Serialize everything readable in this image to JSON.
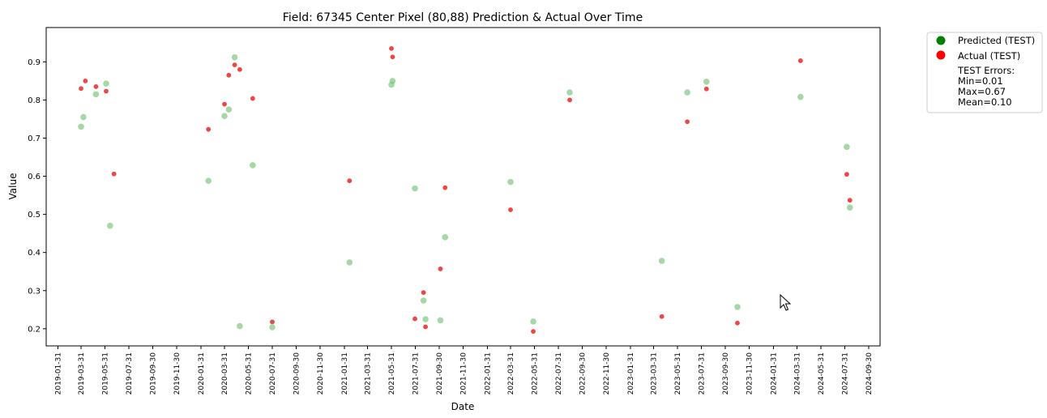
{
  "chart_data": {
    "type": "scatter",
    "title": "Field: 67345 Center Pixel (80,88) Prediction & Actual Over Time",
    "xlabel": "Date",
    "ylabel": "Value",
    "xlim": [
      "2019-01-01",
      "2024-10-29"
    ],
    "ylim": [
      0.155,
      0.99
    ],
    "yticks": [
      0.2,
      0.3,
      0.4,
      0.5,
      0.6,
      0.7,
      0.8,
      0.9
    ],
    "xticks": [
      "2019-01-31",
      "2019-03-31",
      "2019-05-31",
      "2019-07-31",
      "2019-09-30",
      "2019-11-30",
      "2020-01-31",
      "2020-03-31",
      "2020-05-31",
      "2020-07-31",
      "2020-09-30",
      "2020-11-30",
      "2021-01-31",
      "2021-03-31",
      "2021-05-31",
      "2021-07-31",
      "2021-09-30",
      "2021-11-30",
      "2022-01-31",
      "2022-03-31",
      "2022-05-31",
      "2022-07-31",
      "2022-09-30",
      "2022-11-30",
      "2023-01-31",
      "2023-03-31",
      "2023-05-31",
      "2023-07-31",
      "2023-09-30",
      "2023-11-30",
      "2024-01-31",
      "2024-03-31",
      "2024-05-31",
      "2024-07-31",
      "2024-09-30"
    ],
    "legend_position": "outside-top-right",
    "grid": false,
    "series": [
      {
        "name": "Predicted (TEST)",
        "marker_color": "#77c177",
        "legend_color": "#008000",
        "points": [
          {
            "x": "2019-03-31",
            "y": 0.73
          },
          {
            "x": "2019-04-06",
            "y": 0.755
          },
          {
            "x": "2019-05-08",
            "y": 0.815
          },
          {
            "x": "2019-06-03",
            "y": 0.843
          },
          {
            "x": "2019-06-13",
            "y": 0.47
          },
          {
            "x": "2020-02-19",
            "y": 0.588
          },
          {
            "x": "2020-03-31",
            "y": 0.758
          },
          {
            "x": "2020-04-11",
            "y": 0.775
          },
          {
            "x": "2020-04-26",
            "y": 0.912
          },
          {
            "x": "2020-05-09",
            "y": 0.207
          },
          {
            "x": "2020-06-11",
            "y": 0.629
          },
          {
            "x": "2020-07-31",
            "y": 0.204
          },
          {
            "x": "2021-02-13",
            "y": 0.374
          },
          {
            "x": "2021-05-31",
            "y": 0.84
          },
          {
            "x": "2021-06-03",
            "y": 0.85
          },
          {
            "x": "2021-07-30",
            "y": 0.568
          },
          {
            "x": "2021-08-21",
            "y": 0.274
          },
          {
            "x": "2021-08-26",
            "y": 0.225
          },
          {
            "x": "2021-10-03",
            "y": 0.222
          },
          {
            "x": "2021-10-15",
            "y": 0.44
          },
          {
            "x": "2022-03-31",
            "y": 0.585
          },
          {
            "x": "2022-05-28",
            "y": 0.219
          },
          {
            "x": "2022-08-29",
            "y": 0.82
          },
          {
            "x": "2023-04-21",
            "y": 0.378
          },
          {
            "x": "2023-06-25",
            "y": 0.82
          },
          {
            "x": "2023-08-13",
            "y": 0.848
          },
          {
            "x": "2023-10-31",
            "y": 0.257
          },
          {
            "x": "2024-04-09",
            "y": 0.808
          },
          {
            "x": "2024-08-05",
            "y": 0.677
          },
          {
            "x": "2024-08-13",
            "y": 0.518
          }
        ]
      },
      {
        "name": "Actual (TEST)",
        "marker_color": "#f03030",
        "legend_color": "#ff0000",
        "points": [
          {
            "x": "2019-03-31",
            "y": 0.83
          },
          {
            "x": "2019-04-11",
            "y": 0.85
          },
          {
            "x": "2019-05-08",
            "y": 0.835
          },
          {
            "x": "2019-06-03",
            "y": 0.823
          },
          {
            "x": "2019-06-23",
            "y": 0.606
          },
          {
            "x": "2020-02-19",
            "y": 0.723
          },
          {
            "x": "2020-03-31",
            "y": 0.789
          },
          {
            "x": "2020-04-11",
            "y": 0.865
          },
          {
            "x": "2020-04-26",
            "y": 0.892
          },
          {
            "x": "2020-05-09",
            "y": 0.88
          },
          {
            "x": "2020-06-11",
            "y": 0.804
          },
          {
            "x": "2020-07-31",
            "y": 0.218
          },
          {
            "x": "2021-02-13",
            "y": 0.588
          },
          {
            "x": "2021-05-31",
            "y": 0.935
          },
          {
            "x": "2021-06-03",
            "y": 0.913
          },
          {
            "x": "2021-07-30",
            "y": 0.226
          },
          {
            "x": "2021-08-21",
            "y": 0.295
          },
          {
            "x": "2021-08-26",
            "y": 0.205
          },
          {
            "x": "2021-10-03",
            "y": 0.357
          },
          {
            "x": "2021-10-15",
            "y": 0.57
          },
          {
            "x": "2022-03-31",
            "y": 0.512
          },
          {
            "x": "2022-05-28",
            "y": 0.193
          },
          {
            "x": "2022-08-29",
            "y": 0.8
          },
          {
            "x": "2023-04-21",
            "y": 0.232
          },
          {
            "x": "2023-06-25",
            "y": 0.743
          },
          {
            "x": "2023-08-13",
            "y": 0.829
          },
          {
            "x": "2023-10-31",
            "y": 0.215
          },
          {
            "x": "2024-04-09",
            "y": 0.903
          },
          {
            "x": "2024-08-05",
            "y": 0.605
          },
          {
            "x": "2024-08-13",
            "y": 0.537
          }
        ]
      }
    ],
    "legend_stats": [
      "TEST Errors:",
      "Min=0.01",
      "Max=0.67",
      "Mean=0.10"
    ]
  }
}
